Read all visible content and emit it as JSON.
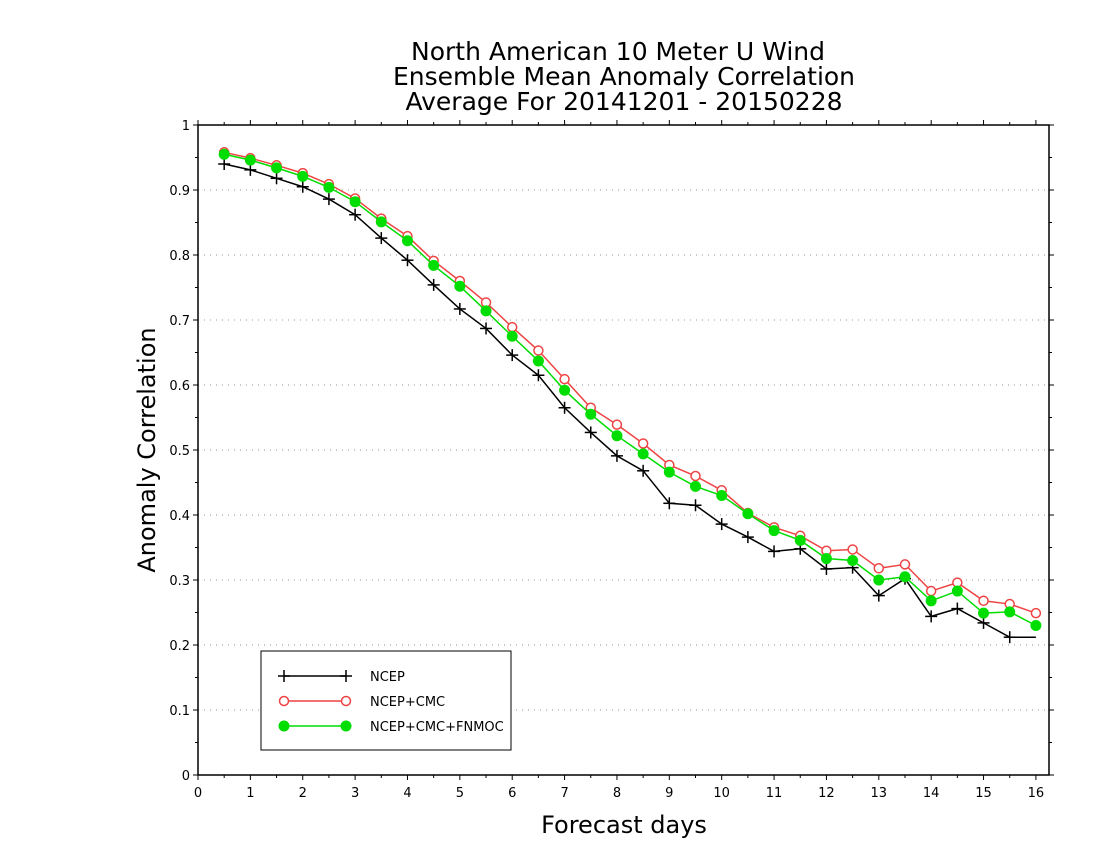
{
  "chart_data": {
    "type": "line",
    "title": [
      "North American 10 Meter U Wind",
      "Ensemble Mean Anomaly Correlation",
      "Average For 20141201 - 20150228"
    ],
    "xlabel": "Forecast days",
    "ylabel": "Anomaly Correlation",
    "xlim": [
      0,
      16.25
    ],
    "ylim": [
      0,
      1
    ],
    "xticks": [
      "0",
      "1",
      "2",
      "3",
      "4",
      "5",
      "6",
      "7",
      "8",
      "9",
      "10",
      "11",
      "12",
      "13",
      "14",
      "15",
      "16"
    ],
    "yticks": [
      "0",
      "0.1",
      "0.2",
      "0.3",
      "0.4",
      "0.5",
      "0.6",
      "0.7",
      "0.8",
      "0.9",
      "1"
    ],
    "grid": true,
    "legend_position": "bottom-left",
    "x": [
      0.5,
      1,
      1.5,
      2,
      2.5,
      3,
      3.5,
      4,
      4.5,
      5,
      5.5,
      6,
      6.5,
      7,
      7.5,
      8,
      8.5,
      9,
      9.5,
      10,
      10.5,
      11,
      11.5,
      12,
      12.5,
      13,
      13.5,
      14,
      14.5,
      15,
      15.5,
      16
    ],
    "series": [
      {
        "name": "NCEP",
        "color": "#000000",
        "marker": "plus",
        "values": [
          0.94,
          0.931,
          0.918,
          0.905,
          0.886,
          0.862,
          0.826,
          0.792,
          0.754,
          0.717,
          0.687,
          0.646,
          0.615,
          0.565,
          0.527,
          0.491,
          0.468,
          0.418,
          0.415,
          0.386,
          0.366,
          0.344,
          0.348,
          0.317,
          0.319,
          0.276,
          0.302,
          0.244,
          0.256,
          0.234,
          0.212,
          0.212
        ]
      },
      {
        "name": "NCEP+CMC",
        "color": "#ee4444",
        "marker": "open-circle",
        "values": [
          0.958,
          0.949,
          0.938,
          0.926,
          0.909,
          0.887,
          0.856,
          0.829,
          0.791,
          0.76,
          0.727,
          0.689,
          0.653,
          0.609,
          0.565,
          0.539,
          0.51,
          0.477,
          0.46,
          0.438,
          0.403,
          0.381,
          0.368,
          0.345,
          0.347,
          0.318,
          0.324,
          0.283,
          0.296,
          0.268,
          0.263,
          0.249
        ]
      },
      {
        "name": "NCEP+CMC+FNMOC",
        "color": "#00dd00",
        "marker": "filled-circle",
        "values": [
          0.955,
          0.946,
          0.934,
          0.921,
          0.904,
          0.882,
          0.851,
          0.822,
          0.784,
          0.752,
          0.714,
          0.675,
          0.637,
          0.592,
          0.555,
          0.522,
          0.494,
          0.466,
          0.444,
          0.43,
          0.402,
          0.376,
          0.361,
          0.333,
          0.33,
          0.3,
          0.305,
          0.268,
          0.283,
          0.249,
          0.251,
          0.23
        ]
      }
    ]
  }
}
